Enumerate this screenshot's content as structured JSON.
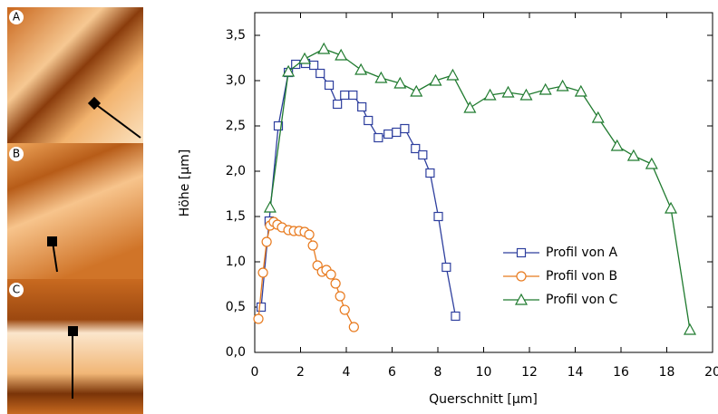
{
  "panels": [
    "A",
    "B",
    "C"
  ],
  "chart_data": {
    "type": "line",
    "xlabel": "Querschnitt [µm]",
    "ylabel": "Höhe [µm]",
    "xlim": [
      0,
      20
    ],
    "xticks": [
      0,
      2,
      4,
      6,
      8,
      10,
      12,
      14,
      16,
      18,
      20
    ],
    "ylim": [
      0,
      3.75
    ],
    "yticks": [
      {
        "value": 0,
        "label": "0,0"
      },
      {
        "value": 0.5,
        "label": "0,5"
      },
      {
        "value": 1,
        "label": "1,0"
      },
      {
        "value": 1.5,
        "label": "1,5"
      },
      {
        "value": 2,
        "label": "2,0"
      },
      {
        "value": 2.5,
        "label": "2,5"
      },
      {
        "value": 3,
        "label": "3,0"
      },
      {
        "value": 3.5,
        "label": "3,5"
      }
    ],
    "legend": "lower right",
    "series": [
      {
        "name": "Profil von A",
        "color": "#2e3f9e",
        "marker": "square",
        "x": [
          0.28,
          0.63,
          1.03,
          1.47,
          1.79,
          2.22,
          2.58,
          2.86,
          3.25,
          3.61,
          3.93,
          4.29,
          4.68,
          4.96,
          5.4,
          5.83,
          6.19,
          6.55,
          7.02,
          7.34,
          7.66,
          8.02,
          8.37,
          8.77
        ],
        "values": [
          0.5,
          1.45,
          2.5,
          3.09,
          3.18,
          3.19,
          3.17,
          3.08,
          2.95,
          2.74,
          2.84,
          2.84,
          2.71,
          2.56,
          2.37,
          2.41,
          2.43,
          2.47,
          2.25,
          2.18,
          1.98,
          1.5,
          0.94,
          0.4
        ]
      },
      {
        "name": "Profil von B",
        "color": "#e87a1e",
        "marker": "circle",
        "x": [
          0.16,
          0.36,
          0.52,
          0.67,
          0.83,
          0.99,
          1.19,
          1.47,
          1.71,
          1.94,
          2.18,
          2.38,
          2.54,
          2.74,
          2.94,
          3.13,
          3.33,
          3.53,
          3.73,
          3.93,
          4.33
        ],
        "values": [
          0.37,
          0.88,
          1.22,
          1.4,
          1.44,
          1.41,
          1.38,
          1.35,
          1.34,
          1.34,
          1.33,
          1.3,
          1.18,
          0.96,
          0.89,
          0.91,
          0.86,
          0.76,
          0.62,
          0.47,
          0.28
        ]
      },
      {
        "name": "Profil von C",
        "color": "#1f7a2e",
        "marker": "triangle",
        "x": [
          0.67,
          1.47,
          2.18,
          3.02,
          3.77,
          4.64,
          5.52,
          6.35,
          7.06,
          7.9,
          8.65,
          9.4,
          10.28,
          11.07,
          11.86,
          12.7,
          13.45,
          14.25,
          15.0,
          15.83,
          16.55,
          17.34,
          18.18,
          19.01
        ],
        "values": [
          1.6,
          3.1,
          3.24,
          3.35,
          3.28,
          3.12,
          3.03,
          2.97,
          2.88,
          3.0,
          3.06,
          2.7,
          2.84,
          2.87,
          2.84,
          2.9,
          2.94,
          2.88,
          2.59,
          2.28,
          2.17,
          2.08,
          1.59,
          0.25
        ]
      }
    ]
  }
}
